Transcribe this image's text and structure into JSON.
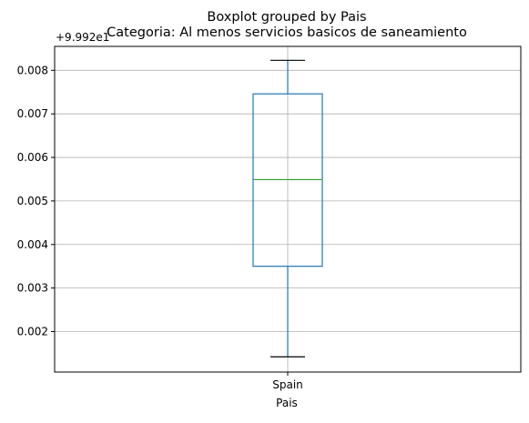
{
  "chart_data": {
    "type": "boxplot",
    "suptitle": "Boxplot grouped by Pais",
    "title": "Categoria: Al menos servicios basicos de saneamiento",
    "xlabel": "Pais",
    "ylabel": "",
    "offset_label": "+9.992e1",
    "categories": [
      "Spain"
    ],
    "ylim": [
      0.00107,
      0.00855
    ],
    "yticks": [
      0.002,
      0.003,
      0.004,
      0.005,
      0.006,
      0.007,
      0.008
    ],
    "ytick_labels": [
      "0.002",
      "0.003",
      "0.004",
      "0.005",
      "0.006",
      "0.007",
      "0.008"
    ],
    "grid": true,
    "legend": "none",
    "boxes": [
      {
        "category": "Spain",
        "whisker_low": 0.00142,
        "q1": 0.0035,
        "median": 0.00549,
        "q3": 0.00746,
        "whisker_high": 0.00823
      }
    ],
    "colors": {
      "box": "#1f77b4",
      "median": "#2ca02c",
      "whisker": "#1f77b4",
      "cap": "#000000",
      "grid": "#b0b0b0",
      "axes": "#000000"
    }
  }
}
